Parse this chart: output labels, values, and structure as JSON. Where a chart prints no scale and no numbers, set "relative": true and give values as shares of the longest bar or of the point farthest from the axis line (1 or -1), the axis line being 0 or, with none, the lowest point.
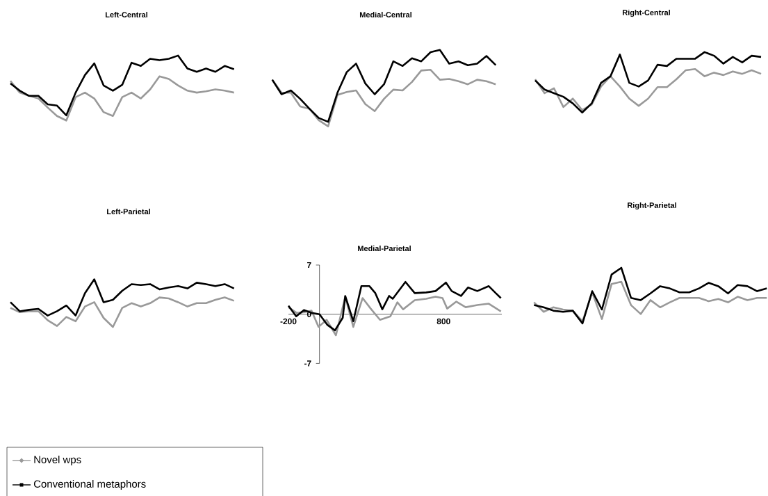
{
  "chart_data": [
    {
      "type": "line",
      "title": "Left-Central",
      "relative": true,
      "line_style": "solid",
      "categories": [
        null,
        null,
        null,
        null,
        null,
        null,
        null,
        null,
        null,
        null,
        null,
        null,
        null,
        null,
        null,
        null,
        null,
        null,
        null,
        null,
        null,
        null,
        null,
        null,
        null
      ],
      "series": [
        {
          "color": "#999999",
          "values": [
            0.61,
            0.43,
            0.38,
            0.34,
            0.2,
            0.07,
            0,
            0.36,
            0.43,
            0.34,
            0.13,
            0.07,
            0.36,
            0.43,
            0.34,
            0.48,
            0.68,
            0.64,
            0.54,
            0.46,
            0.43,
            0.45,
            0.48,
            0.46,
            0.43
          ]
        },
        {
          "color": "#000000",
          "values": [
            0.57,
            0.46,
            0.38,
            0.38,
            0.25,
            0.23,
            0.08,
            0.43,
            0.7,
            0.88,
            0.54,
            0.46,
            0.55,
            0.89,
            0.84,
            0.95,
            0.93,
            0.95,
            1,
            0.8,
            0.75,
            0.8,
            0.75,
            0.84,
            0.79
          ]
        }
      ]
    },
    {
      "type": "line",
      "title": "Medial-Central",
      "relative": true,
      "line_style": "solid",
      "categories": [
        null,
        null,
        null,
        null,
        null,
        null,
        null,
        null,
        null,
        null,
        null,
        null,
        null,
        null,
        null,
        null,
        null,
        null,
        null,
        null,
        null,
        null,
        null,
        null,
        null
      ],
      "series": [
        {
          "color": "#999999",
          "values": [
            0.61,
            0.44,
            0.44,
            0.26,
            0.23,
            0.08,
            0,
            0.41,
            0.45,
            0.47,
            0.29,
            0.2,
            0.36,
            0.48,
            0.47,
            0.58,
            0.73,
            0.74,
            0.61,
            0.62,
            0.59,
            0.55,
            0.61,
            0.59,
            0.55
          ]
        },
        {
          "color": "#000000",
          "values": [
            0.61,
            0.42,
            0.47,
            0.36,
            0.23,
            0.11,
            0.06,
            0.44,
            0.71,
            0.82,
            0.56,
            0.42,
            0.55,
            0.85,
            0.79,
            0.89,
            0.85,
            0.97,
            1,
            0.82,
            0.85,
            0.8,
            0.82,
            0.92,
            0.8
          ]
        }
      ]
    },
    {
      "type": "line",
      "title": "Right-Central",
      "relative": true,
      "line_style": "solid",
      "categories": [
        null,
        null,
        null,
        null,
        null,
        null,
        null,
        null,
        null,
        null,
        null,
        null,
        null,
        null,
        null,
        null,
        null,
        null,
        null,
        null,
        null,
        null,
        null,
        null,
        null
      ],
      "series": [
        {
          "color": "#999999",
          "values": [
            0.55,
            0.32,
            0.4,
            0.09,
            0.23,
            0.04,
            0.13,
            0.43,
            0.6,
            0.43,
            0.23,
            0.11,
            0.23,
            0.42,
            0.42,
            0.55,
            0.7,
            0.72,
            0.6,
            0.66,
            0.62,
            0.68,
            0.64,
            0.7,
            0.64
          ]
        },
        {
          "color": "#000000",
          "values": [
            0.53,
            0.38,
            0.32,
            0.26,
            0.15,
            0,
            0.15,
            0.49,
            0.6,
            0.96,
            0.49,
            0.43,
            0.53,
            0.79,
            0.77,
            0.89,
            0.89,
            0.89,
            1,
            0.94,
            0.81,
            0.92,
            0.83,
            0.94,
            0.92
          ]
        }
      ]
    },
    {
      "type": "line",
      "title": "Left-Parietal",
      "relative": true,
      "line_style": "solid",
      "legend": "bottom left",
      "categories": [
        null,
        null,
        null,
        null,
        null,
        null,
        null,
        null,
        null,
        null,
        null,
        null,
        null,
        null,
        null,
        null,
        null,
        null,
        null,
        null,
        null,
        null,
        null,
        null,
        null
      ],
      "series": [
        {
          "name": "Novel wps",
          "color": "#999999",
          "values": [
            0.4,
            0.31,
            0.33,
            0.33,
            0.14,
            0.02,
            0.21,
            0.12,
            0.43,
            0.52,
            0.19,
            0,
            0.4,
            0.5,
            0.43,
            0.5,
            0.62,
            0.6,
            0.52,
            0.43,
            0.5,
            0.5,
            0.57,
            0.62,
            0.55
          ]
        },
        {
          "name": "Conventional metaphors",
          "color": "#000000",
          "values": [
            0.52,
            0.33,
            0.36,
            0.38,
            0.24,
            0.33,
            0.45,
            0.24,
            0.71,
            1,
            0.52,
            0.57,
            0.76,
            0.9,
            0.88,
            0.9,
            0.79,
            0.83,
            0.86,
            0.81,
            0.93,
            0.9,
            0.86,
            0.9,
            0.81
          ]
        }
      ]
    },
    {
      "type": "line",
      "title": "Medial-Parietal",
      "xlim": [
        -200,
        1175
      ],
      "ylim": [
        -7,
        7
      ],
      "xticks": [
        -200,
        800
      ],
      "yticks": [
        -7,
        0,
        7
      ],
      "line_style": "solid",
      "series": [
        {
          "color": "#999999",
          "x": [
            -200,
            -148,
            -96,
            -51,
            -6,
            46,
            106,
            166,
            218,
            278,
            330,
            390,
            457,
            502,
            539,
            614,
            688,
            748,
            793,
            823,
            882,
            942,
            1017,
            1091,
            1169
          ],
          "values": [
            1.0,
            0.2,
            0.3,
            0.5,
            -1.8,
            -0.8,
            -3.0,
            2.5,
            -1.8,
            2.3,
            0.8,
            -0.8,
            -0.3,
            1.7,
            0.7,
            2.0,
            2.2,
            2.5,
            2.3,
            0.8,
            1.8,
            1.0,
            1.3,
            1.5,
            0.4
          ]
        },
        {
          "color": "#000000",
          "x": [
            -200,
            -150,
            -100,
            -50,
            0,
            50,
            100,
            150,
            166,
            218,
            270,
            322,
            360,
            405,
            449,
            472,
            554,
            614,
            688,
            748,
            815,
            852,
            912,
            957,
            1017,
            1091,
            1136,
            1169
          ],
          "values": [
            1.2,
            -0.3,
            0.6,
            0.2,
            0,
            -1.5,
            -2.3,
            -0.5,
            2.6,
            -1.0,
            4.0,
            4.0,
            3.0,
            0.7,
            2.6,
            2.2,
            4.6,
            3.0,
            3.1,
            3.3,
            4.5,
            3.3,
            2.6,
            3.8,
            3.3,
            4.0,
            3.0,
            2.3
          ]
        }
      ]
    },
    {
      "type": "line",
      "title": "Right-Parietal",
      "relative": true,
      "line_style": "solid",
      "categories": [
        null,
        null,
        null,
        null,
        null,
        null,
        null,
        null,
        null,
        null,
        null,
        null,
        null,
        null,
        null,
        null,
        null,
        null,
        null,
        null,
        null,
        null,
        null,
        null,
        null
      ],
      "series": [
        {
          "color": "#999999",
          "values": [
            0.38,
            0.21,
            0.29,
            0.25,
            0.23,
            0.04,
            0.56,
            0.08,
            0.71,
            0.75,
            0.33,
            0.17,
            0.42,
            0.29,
            0.38,
            0.46,
            0.46,
            0.46,
            0.4,
            0.44,
            0.38,
            0.48,
            0.42,
            0.46,
            0.46
          ]
        },
        {
          "color": "#000000",
          "values": [
            0.33,
            0.29,
            0.23,
            0.21,
            0.23,
            0,
            0.58,
            0.25,
            0.88,
            1,
            0.46,
            0.42,
            0.54,
            0.67,
            0.63,
            0.56,
            0.56,
            0.63,
            0.73,
            0.67,
            0.54,
            0.69,
            0.67,
            0.58,
            0.63
          ]
        }
      ]
    }
  ]
}
